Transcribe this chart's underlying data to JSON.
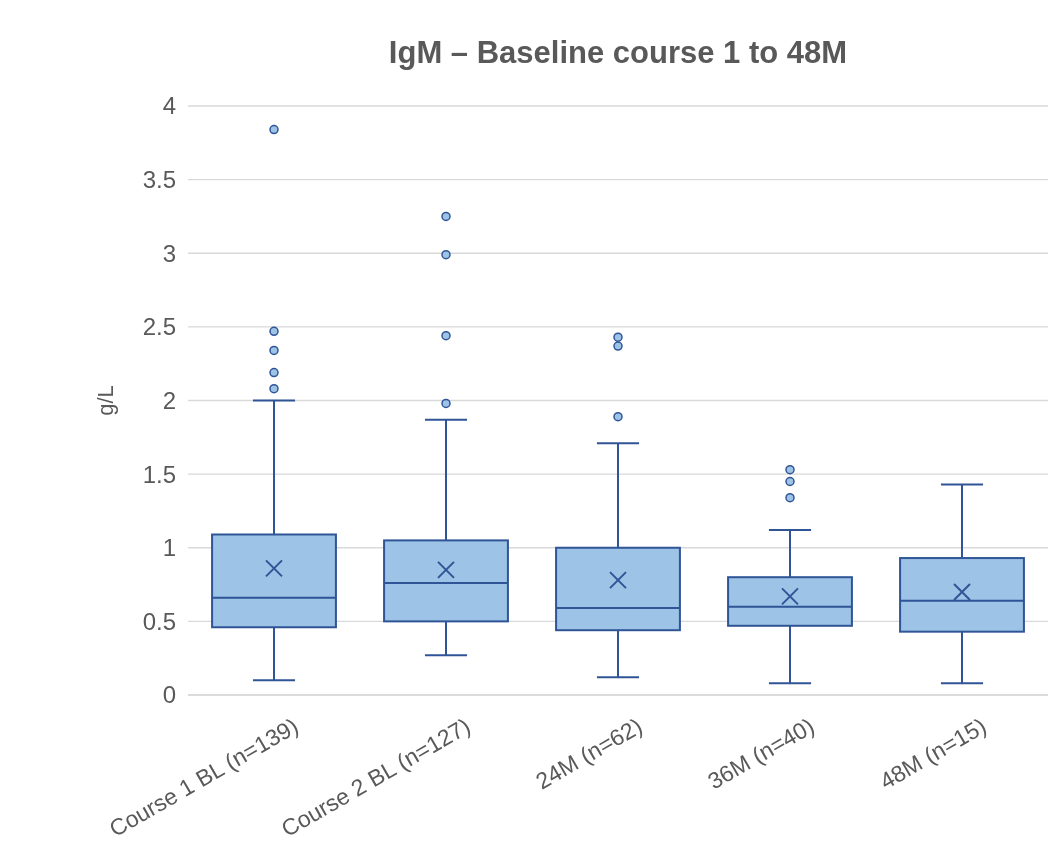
{
  "chart_data": {
    "type": "box",
    "title": "IgM – Baseline course 1 to 48M",
    "ylabel": "g/L",
    "categories": [
      "Course 1 BL (n=139)",
      "Course 2 BL (n=127)",
      "24M (n=62)",
      "36M (n=40)",
      "48M (n=15)"
    ],
    "color": "#9dc3e6",
    "boxes": [
      {
        "low": 0.1,
        "q1": 0.46,
        "median": 0.66,
        "q3": 1.09,
        "high": 2.0,
        "mean": 0.86,
        "outliers": [
          3.84,
          2.47,
          2.34,
          2.19,
          2.08
        ]
      },
      {
        "low": 0.27,
        "q1": 0.5,
        "median": 0.76,
        "q3": 1.05,
        "high": 1.87,
        "mean": 0.85,
        "outliers": [
          3.25,
          2.99,
          2.44,
          1.98
        ]
      },
      {
        "low": 0.12,
        "q1": 0.44,
        "median": 0.59,
        "q3": 1.0,
        "high": 1.71,
        "mean": 0.78,
        "outliers": [
          2.43,
          2.37,
          1.89
        ]
      },
      {
        "low": 0.08,
        "q1": 0.47,
        "median": 0.6,
        "q3": 0.8,
        "high": 1.12,
        "mean": 0.67,
        "outliers": [
          1.53,
          1.45,
          1.34
        ]
      },
      {
        "low": 0.08,
        "q1": 0.43,
        "median": 0.64,
        "q3": 0.93,
        "high": 1.43,
        "mean": 0.7
      }
    ],
    "ylim": [
      0,
      4
    ],
    "yticks": [
      0,
      0.5,
      1,
      1.5,
      2,
      2.5,
      3,
      3.5,
      4
    ],
    "grid": "y"
  }
}
